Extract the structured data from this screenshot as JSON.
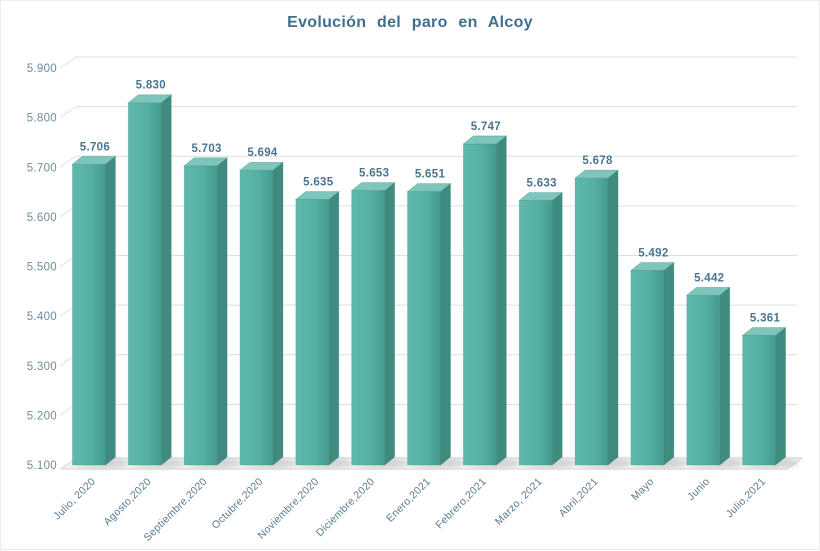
{
  "title": "Evolución del paro en Alcoy",
  "chart_data": {
    "type": "bar",
    "style": "3d-column",
    "title": "Evolución del paro en Alcoy",
    "categories": [
      "Julio, 2020",
      "Agosto,2020",
      "Septiembre,2020",
      "Octubre,2020",
      "Noviembre,2020",
      "Diciembre,2020",
      "Enero,2021",
      "Febrero,2021",
      "Marzo, 2021",
      "Abril,2021",
      "Mayo",
      "Junio",
      "Julio,2021"
    ],
    "values": [
      5706,
      5830,
      5703,
      5694,
      5635,
      5653,
      5651,
      5747,
      5633,
      5678,
      5492,
      5442,
      5361
    ],
    "data_labels": [
      "5.706",
      "5.830",
      "5.703",
      "5.694",
      "5.635",
      "5.653",
      "5.651",
      "5.747",
      "5.633",
      "5.678",
      "5.492",
      "5.442",
      "5.361"
    ],
    "y_axis_ticks": [
      {
        "value": 5900,
        "label": "5.900"
      },
      {
        "value": 5800,
        "label": "5.800"
      },
      {
        "value": 5700,
        "label": "5.700"
      },
      {
        "value": 5600,
        "label": "5.600"
      },
      {
        "value": 5500,
        "label": "5.500"
      },
      {
        "value": 5400,
        "label": "5.400"
      },
      {
        "value": 5300,
        "label": "5.300"
      },
      {
        "value": 5200,
        "label": "5.200"
      },
      {
        "value": 5100,
        "label": "5.100"
      }
    ],
    "ylim": [
      5100,
      5900
    ],
    "grid": true,
    "legend": "none",
    "colors": {
      "bar_front": "#56b0a4",
      "bar_front_light": "#5fb8ac",
      "bar_front_dark": "#459a8f",
      "bar_top": "#7ec6bc",
      "bar_side": "#3f8b80",
      "bar_edge": "#3a8277",
      "title_text": "#41708f",
      "value_label": "#4a7590",
      "y_tick_text": "#6f8c9d",
      "category_text": "#567c93",
      "gridline": "#dcdfe2",
      "floor_fill": "#f2f2f2",
      "floor_edge": "#d4d4d4",
      "shadow": "#8f9598"
    }
  }
}
